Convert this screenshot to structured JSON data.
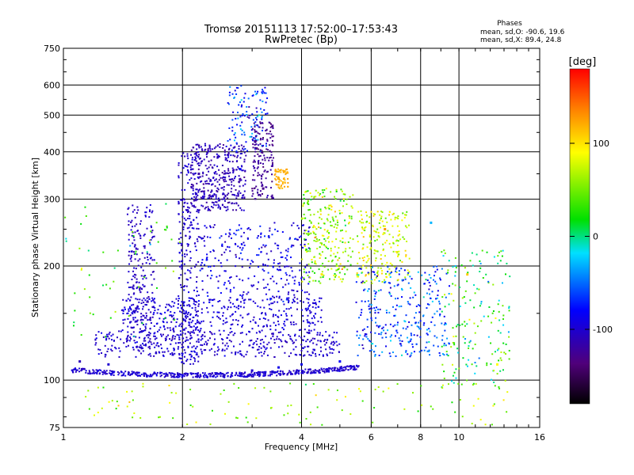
{
  "chart_data": {
    "type": "scatter",
    "title": "Tromsø 20151113 17:52:00–17:53:43",
    "subtitle": "RwPretec (Bp)",
    "xlabel": "Frequency [MHz]",
    "ylabel": "Stationary phase Virtual Height [km]",
    "x_scale": "log",
    "y_scale": "log",
    "xlim": [
      1,
      16
    ],
    "ylim": [
      75,
      750
    ],
    "x_ticks": [
      "1",
      "2",
      "4",
      "6",
      "8",
      "10",
      "16"
    ],
    "y_ticks": [
      "75",
      "100",
      "200",
      "300",
      "400",
      "500",
      "600",
      "750"
    ],
    "grid": true,
    "phases_box": {
      "header": "Phases",
      "line1": "mean, sd,O: -90.6, 19.6",
      "line2": "mean, sd,X:  89.4, 24.8"
    },
    "colorbar": {
      "label": "[deg]",
      "range": [
        -180,
        180
      ],
      "ticks": [
        "100",
        "0",
        "-100"
      ]
    },
    "sample_points": [
      {
        "x": 1.1,
        "y": 112,
        "phase": -110
      },
      {
        "x": 1.3,
        "y": 110,
        "phase": -100
      },
      {
        "x": 1.6,
        "y": 104,
        "phase": -100
      },
      {
        "x": 2.0,
        "y": 103,
        "phase": -90
      },
      {
        "x": 2.5,
        "y": 104,
        "phase": -95
      },
      {
        "x": 3.0,
        "y": 106,
        "phase": -100
      },
      {
        "x": 3.5,
        "y": 108,
        "phase": -90
      },
      {
        "x": 4.0,
        "y": 110,
        "phase": -90
      },
      {
        "x": 5.0,
        "y": 112,
        "phase": -80
      },
      {
        "x": 2.2,
        "y": 350,
        "phase": -120
      },
      {
        "x": 2.8,
        "y": 360,
        "phase": -80
      },
      {
        "x": 3.2,
        "y": 320,
        "phase": -130
      },
      {
        "x": 3.5,
        "y": 340,
        "phase": 120
      },
      {
        "x": 4.5,
        "y": 190,
        "phase": 100
      },
      {
        "x": 6.5,
        "y": 250,
        "phase": 130
      },
      {
        "x": 8.5,
        "y": 260,
        "phase": -30
      },
      {
        "x": 10.5,
        "y": 190,
        "phase": 110
      },
      {
        "x": 12.5,
        "y": 110,
        "phase": 90
      }
    ]
  }
}
